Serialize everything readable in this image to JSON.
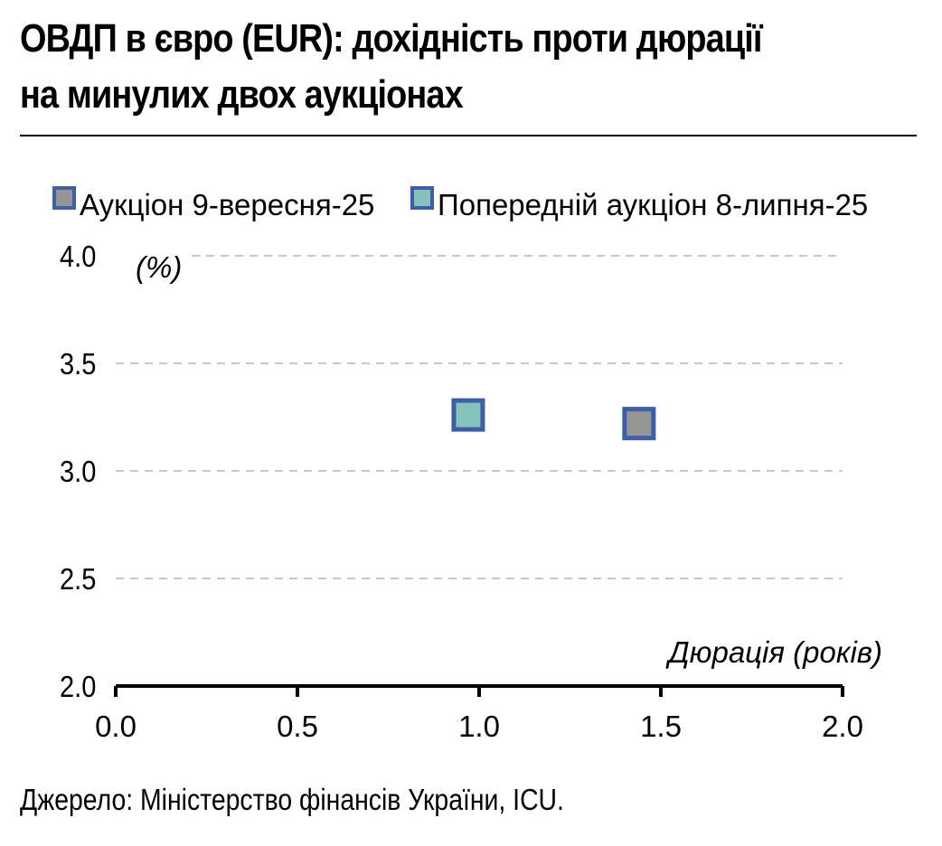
{
  "title_line1": "ОВДП в євро (EUR): дохідність проти дюрації",
  "title_line2": "на минулих двох аукціонах",
  "source": "Джерело: Міністерство фінансів України, ICU.",
  "chart_data": {
    "type": "scatter",
    "title": "ОВДП в євро (EUR): дохідність проти дюрації на минулих двох аукціонах",
    "xlabel": "Дюрація (років)",
    "ylabel": "(%)",
    "xlim": [
      0,
      2
    ],
    "ylim": [
      2,
      4
    ],
    "x_ticks": [
      "0.0",
      "0.5",
      "1.0",
      "1.5",
      "2.0"
    ],
    "y_ticks": [
      "2.0",
      "2.5",
      "3.0",
      "3.5",
      "4.0"
    ],
    "grid": "horizontal dashed",
    "legend_position": "top",
    "series": [
      {
        "name": "Аукціон 9-вересня-25",
        "color": "#959595",
        "border": "#3d5fa3",
        "points": [
          {
            "x": 1.44,
            "y": 3.22
          }
        ]
      },
      {
        "name": "Попередній аукціон 8-липня-25",
        "color": "#85c2be",
        "border": "#3d5fa3",
        "points": [
          {
            "x": 0.97,
            "y": 3.26
          }
        ]
      }
    ]
  }
}
